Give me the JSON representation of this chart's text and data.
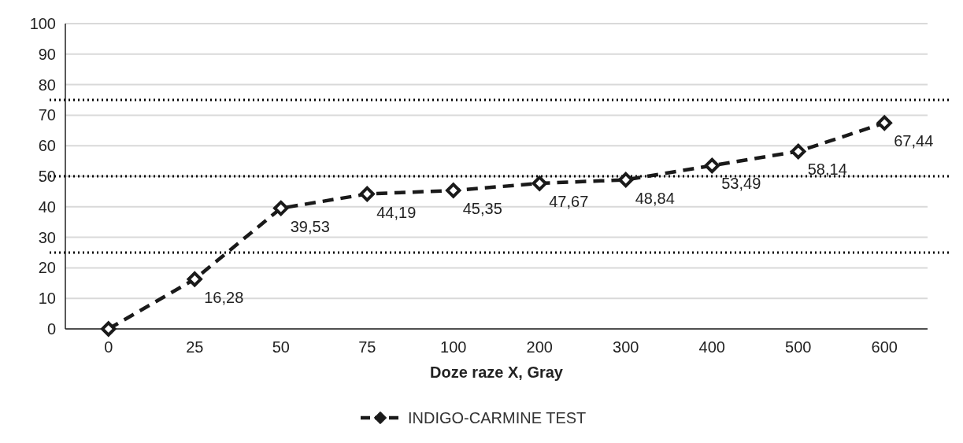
{
  "chart_data": {
    "type": "line",
    "xlabel": "Doze raze X, Gray",
    "categories": [
      "0",
      "25",
      "50",
      "75",
      "100",
      "200",
      "300",
      "400",
      "500",
      "600"
    ],
    "series": [
      {
        "name": "INDIGO-CARMINE TEST",
        "color": "#1a1a1a",
        "values": [
          0,
          16.28,
          39.53,
          44.19,
          45.35,
          47.67,
          48.84,
          53.49,
          58.14,
          67.44
        ],
        "value_labels": [
          null,
          "16,28",
          "39,53",
          "44,19",
          "45,35",
          "47,67",
          "48,84",
          "53,49",
          "58,14",
          "67,44"
        ]
      }
    ],
    "ylim": [
      0,
      100
    ],
    "yticks": [
      0,
      10,
      20,
      30,
      40,
      50,
      60,
      70,
      80,
      90,
      100
    ],
    "grid": "y",
    "legend": "bottom",
    "marker": "diamond",
    "line_style": "dashed",
    "ref_lines": [
      {
        "axis": "y",
        "value": 75,
        "color": "#000000",
        "line_style": "dotted"
      },
      {
        "axis": "y",
        "value": 50,
        "color": "#000000",
        "line_style": "dotted"
      },
      {
        "axis": "y",
        "value": 25,
        "color": "#000000",
        "line_style": "dotted"
      }
    ]
  }
}
